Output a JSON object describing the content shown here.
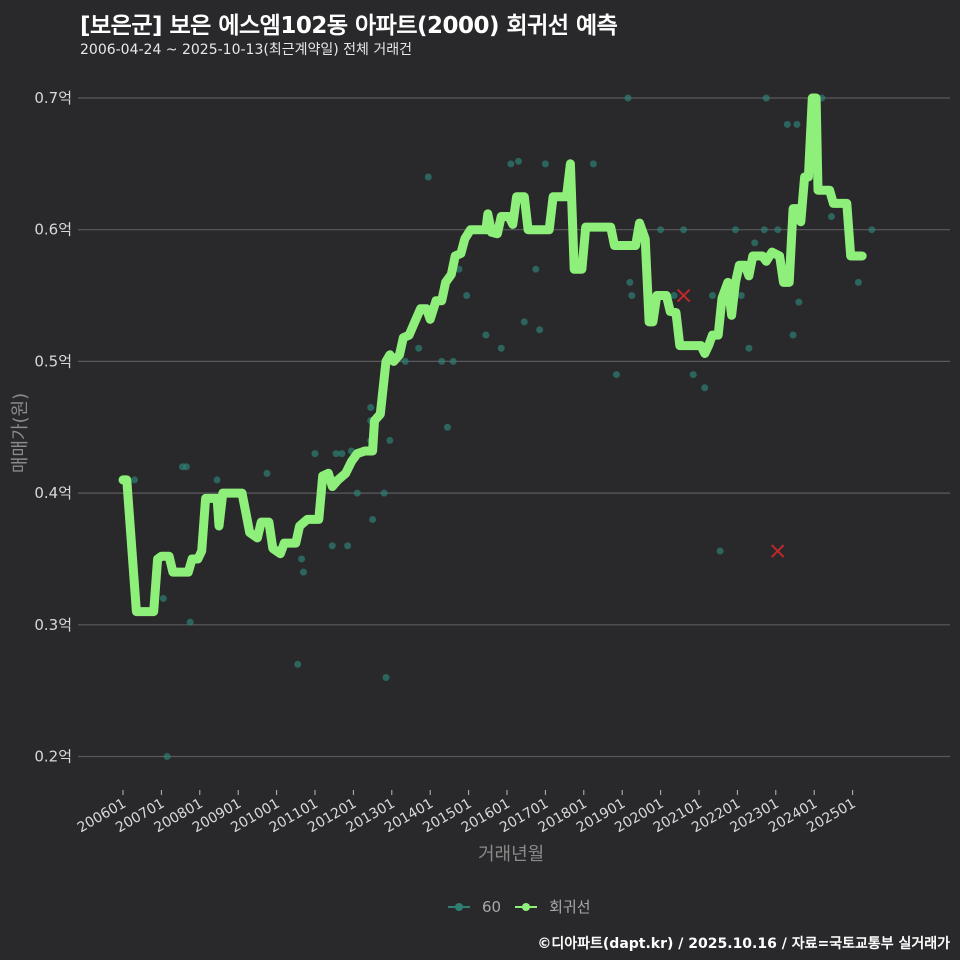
{
  "header": {
    "title": "[보은군] 보은 에스엠102동 아파트(2000) 회귀선 예측",
    "subtitle": "2006-04-24 ~ 2025-10-13(최근계약일) 전체 거래건"
  },
  "footer": "©디아파트(dapt.kr) / 2025.10.16 / 자료=국토교통부 실거래가",
  "colors": {
    "background": "#29282b",
    "grid": "#5a5a5c",
    "regression": "#8ef07a",
    "scatter": "#2e7f73",
    "outlier": "#c0282d"
  },
  "chart_data": {
    "type": "line",
    "title": "[보은군] 보은 에스엠102동 아파트(2000) 회귀선 예측",
    "subtitle": "2006-04-24 ~ 2025-10-13(최근계약일) 전체 거래건",
    "xlabel": "거래년월",
    "ylabel": "매매가(원)",
    "ylim": [
      0.18,
      0.72
    ],
    "yticks": [
      0.2,
      0.3,
      0.4,
      0.5,
      0.6,
      0.7
    ],
    "ytick_labels": [
      "0.2억",
      "0.3억",
      "0.4억",
      "0.5억",
      "0.6억",
      "0.7억"
    ],
    "xticks": [
      2006,
      2007,
      2008,
      2009,
      2010,
      2011,
      2012,
      2013,
      2014,
      2015,
      2016,
      2017,
      2018,
      2019,
      2020,
      2021,
      2022,
      2023,
      2024,
      2025
    ],
    "xtick_labels": [
      "200601",
      "200701",
      "200801",
      "200901",
      "201001",
      "201101",
      "201201",
      "201301",
      "201401",
      "201501",
      "201601",
      "201701",
      "201801",
      "201901",
      "202001",
      "202101",
      "202201",
      "202301",
      "202401",
      "202501"
    ],
    "grid": true,
    "legend": {
      "position": "bottom",
      "entries": [
        "60",
        "회귀선"
      ]
    },
    "series": [
      {
        "name": "회귀선",
        "points": [
          [
            2006.0,
            0.41
          ],
          [
            2006.1,
            0.41
          ],
          [
            2006.35,
            0.31
          ],
          [
            2006.8,
            0.31
          ],
          [
            2006.9,
            0.35
          ],
          [
            2007.0,
            0.352
          ],
          [
            2007.2,
            0.352
          ],
          [
            2007.3,
            0.34
          ],
          [
            2007.7,
            0.34
          ],
          [
            2007.8,
            0.35
          ],
          [
            2007.95,
            0.35
          ],
          [
            2008.05,
            0.356
          ],
          [
            2008.15,
            0.396
          ],
          [
            2008.45,
            0.396
          ],
          [
            2008.5,
            0.375
          ],
          [
            2008.6,
            0.4
          ],
          [
            2009.1,
            0.4
          ],
          [
            2009.2,
            0.385
          ],
          [
            2009.3,
            0.37
          ],
          [
            2009.5,
            0.366
          ],
          [
            2009.6,
            0.378
          ],
          [
            2009.8,
            0.378
          ],
          [
            2009.9,
            0.358
          ],
          [
            2010.1,
            0.354
          ],
          [
            2010.2,
            0.362
          ],
          [
            2010.5,
            0.362
          ],
          [
            2010.6,
            0.375
          ],
          [
            2010.8,
            0.38
          ],
          [
            2011.1,
            0.38
          ],
          [
            2011.2,
            0.413
          ],
          [
            2011.35,
            0.415
          ],
          [
            2011.45,
            0.405
          ],
          [
            2011.6,
            0.41
          ],
          [
            2011.8,
            0.415
          ],
          [
            2011.95,
            0.424
          ],
          [
            2012.1,
            0.43
          ],
          [
            2012.3,
            0.432
          ],
          [
            2012.5,
            0.432
          ],
          [
            2012.55,
            0.455
          ],
          [
            2012.7,
            0.46
          ],
          [
            2012.85,
            0.5
          ],
          [
            2012.95,
            0.505
          ],
          [
            2013.05,
            0.5
          ],
          [
            2013.2,
            0.505
          ],
          [
            2013.3,
            0.518
          ],
          [
            2013.45,
            0.52
          ],
          [
            2013.6,
            0.53
          ],
          [
            2013.75,
            0.54
          ],
          [
            2013.9,
            0.54
          ],
          [
            2014.0,
            0.532
          ],
          [
            2014.15,
            0.546
          ],
          [
            2014.3,
            0.546
          ],
          [
            2014.4,
            0.56
          ],
          [
            2014.55,
            0.566
          ],
          [
            2014.65,
            0.58
          ],
          [
            2014.8,
            0.582
          ],
          [
            2014.9,
            0.593
          ],
          [
            2015.05,
            0.6
          ],
          [
            2015.45,
            0.6
          ],
          [
            2015.5,
            0.612
          ],
          [
            2015.6,
            0.598
          ],
          [
            2015.75,
            0.597
          ],
          [
            2015.85,
            0.61
          ],
          [
            2016.05,
            0.61
          ],
          [
            2016.15,
            0.604
          ],
          [
            2016.25,
            0.625
          ],
          [
            2016.45,
            0.625
          ],
          [
            2016.55,
            0.6
          ],
          [
            2017.1,
            0.6
          ],
          [
            2017.2,
            0.625
          ],
          [
            2017.55,
            0.625
          ],
          [
            2017.65,
            0.65
          ],
          [
            2017.75,
            0.57
          ],
          [
            2017.95,
            0.57
          ],
          [
            2018.05,
            0.602
          ],
          [
            2018.7,
            0.602
          ],
          [
            2018.8,
            0.588
          ],
          [
            2019.35,
            0.588
          ],
          [
            2019.45,
            0.605
          ],
          [
            2019.6,
            0.593
          ],
          [
            2019.7,
            0.53
          ],
          [
            2019.8,
            0.53
          ],
          [
            2019.9,
            0.55
          ],
          [
            2020.15,
            0.55
          ],
          [
            2020.25,
            0.538
          ],
          [
            2020.4,
            0.537
          ],
          [
            2020.5,
            0.512
          ],
          [
            2021.05,
            0.512
          ],
          [
            2021.15,
            0.506
          ],
          [
            2021.25,
            0.512
          ],
          [
            2021.35,
            0.52
          ],
          [
            2021.5,
            0.52
          ],
          [
            2021.6,
            0.548
          ],
          [
            2021.75,
            0.56
          ],
          [
            2021.85,
            0.535
          ],
          [
            2021.95,
            0.56
          ],
          [
            2022.05,
            0.573
          ],
          [
            2022.2,
            0.573
          ],
          [
            2022.3,
            0.565
          ],
          [
            2022.4,
            0.58
          ],
          [
            2022.65,
            0.58
          ],
          [
            2022.75,
            0.576
          ],
          [
            2022.9,
            0.583
          ],
          [
            2023.1,
            0.58
          ],
          [
            2023.2,
            0.56
          ],
          [
            2023.35,
            0.56
          ],
          [
            2023.45,
            0.616
          ],
          [
            2023.6,
            0.616
          ],
          [
            2023.65,
            0.606
          ],
          [
            2023.75,
            0.64
          ],
          [
            2023.85,
            0.64
          ],
          [
            2023.95,
            0.7
          ],
          [
            2024.05,
            0.7
          ],
          [
            2024.1,
            0.63
          ],
          [
            2024.4,
            0.63
          ],
          [
            2024.5,
            0.62
          ],
          [
            2024.85,
            0.62
          ],
          [
            2024.95,
            0.58
          ],
          [
            2025.25,
            0.58
          ]
        ]
      },
      {
        "name": "60",
        "points": [
          [
            2006.3,
            0.41
          ],
          [
            2007.05,
            0.32
          ],
          [
            2007.15,
            0.2
          ],
          [
            2007.55,
            0.42
          ],
          [
            2007.65,
            0.42
          ],
          [
            2007.75,
            0.302
          ],
          [
            2008.45,
            0.41
          ],
          [
            2009.75,
            0.415
          ],
          [
            2010.55,
            0.27
          ],
          [
            2010.65,
            0.35
          ],
          [
            2010.7,
            0.34
          ],
          [
            2011.0,
            0.43
          ],
          [
            2011.45,
            0.36
          ],
          [
            2011.5,
            0.41
          ],
          [
            2011.55,
            0.43
          ],
          [
            2011.7,
            0.43
          ],
          [
            2011.85,
            0.36
          ],
          [
            2011.95,
            0.432
          ],
          [
            2012.1,
            0.4
          ],
          [
            2012.45,
            0.465
          ],
          [
            2012.45,
            0.455
          ],
          [
            2012.45,
            0.44
          ],
          [
            2012.5,
            0.38
          ],
          [
            2012.8,
            0.4
          ],
          [
            2012.85,
            0.26
          ],
          [
            2012.95,
            0.44
          ],
          [
            2013.35,
            0.5
          ],
          [
            2013.7,
            0.51
          ],
          [
            2013.95,
            0.64
          ],
          [
            2014.3,
            0.5
          ],
          [
            2014.45,
            0.45
          ],
          [
            2014.6,
            0.5
          ],
          [
            2014.75,
            0.57
          ],
          [
            2014.95,
            0.55
          ],
          [
            2015.3,
            0.6
          ],
          [
            2015.35,
            0.6
          ],
          [
            2015.45,
            0.52
          ],
          [
            2015.6,
            0.6
          ],
          [
            2015.7,
            0.6
          ],
          [
            2015.85,
            0.51
          ],
          [
            2016.1,
            0.65
          ],
          [
            2016.3,
            0.652
          ],
          [
            2016.45,
            0.53
          ],
          [
            2016.75,
            0.57
          ],
          [
            2016.85,
            0.524
          ],
          [
            2017.0,
            0.65
          ],
          [
            2018.25,
            0.65
          ],
          [
            2018.85,
            0.49
          ],
          [
            2019.15,
            0.7
          ],
          [
            2019.2,
            0.56
          ],
          [
            2019.25,
            0.55
          ],
          [
            2020.0,
            0.6
          ],
          [
            2020.35,
            0.55
          ],
          [
            2020.6,
            0.6
          ],
          [
            2020.85,
            0.49
          ],
          [
            2021.15,
            0.48
          ],
          [
            2021.35,
            0.55
          ],
          [
            2021.55,
            0.356
          ],
          [
            2021.95,
            0.6
          ],
          [
            2022.1,
            0.55
          ],
          [
            2022.3,
            0.51
          ],
          [
            2022.45,
            0.59
          ],
          [
            2022.7,
            0.6
          ],
          [
            2022.75,
            0.7
          ],
          [
            2023.05,
            0.6
          ],
          [
            2023.3,
            0.68
          ],
          [
            2023.45,
            0.52
          ],
          [
            2023.55,
            0.68
          ],
          [
            2023.6,
            0.545
          ],
          [
            2024.2,
            0.7
          ],
          [
            2024.45,
            0.61
          ],
          [
            2025.15,
            0.56
          ],
          [
            2025.5,
            0.6
          ]
        ]
      },
      {
        "name": "outliers",
        "points": [
          [
            2020.6,
            0.55
          ],
          [
            2023.05,
            0.356
          ]
        ]
      }
    ]
  }
}
